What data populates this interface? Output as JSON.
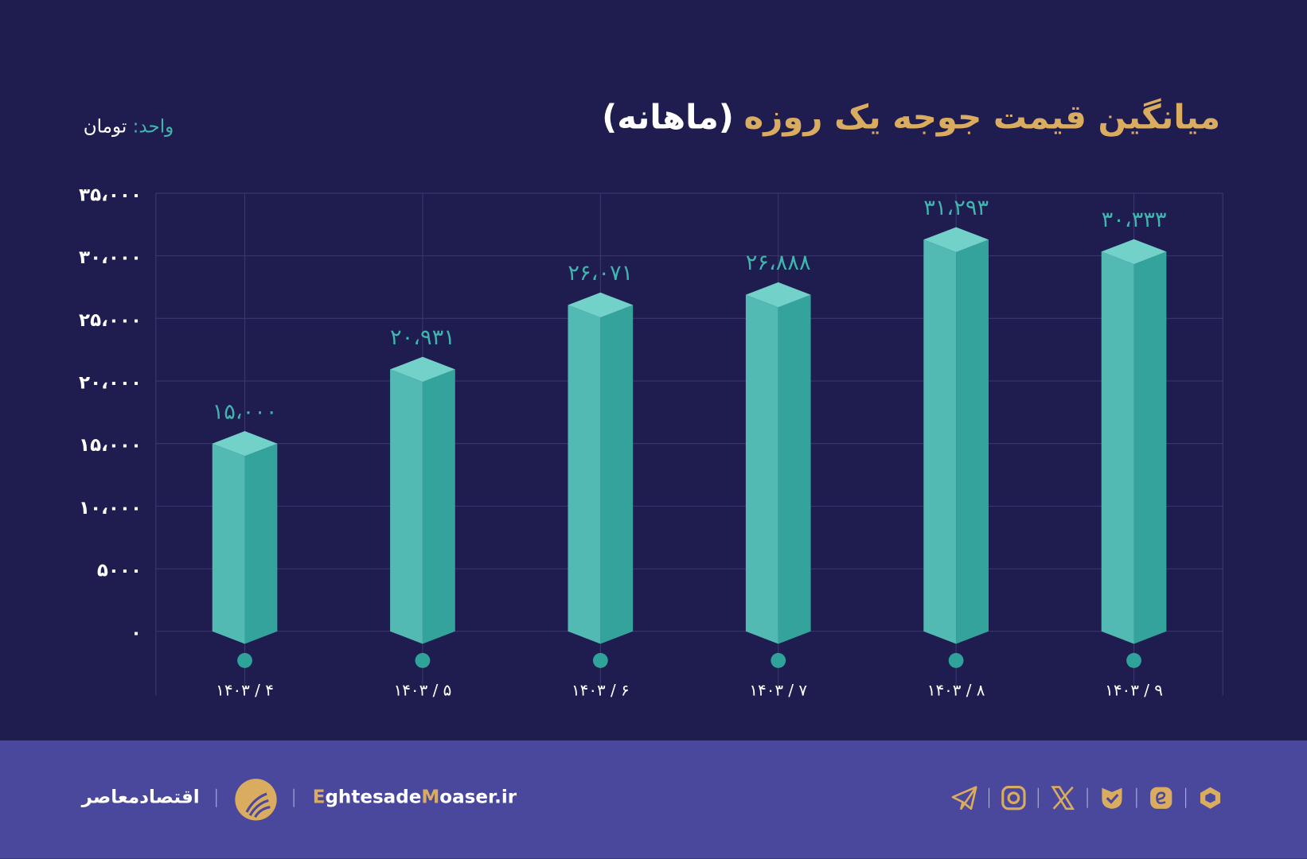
{
  "header": {
    "title_main": "میانگین قیمت جوجه یک روزه",
    "title_sub": "(ماهانه)",
    "unit_key": "واحد:",
    "unit_value": "تومان"
  },
  "chart_data": {
    "type": "bar",
    "title": "میانگین قیمت جوجه یک روزه (ماهانه)",
    "ylabel": "واحد: تومان",
    "categories": [
      "۱۴۰۳ / ۴",
      "۱۴۰۳ / ۵",
      "۱۴۰۳ / ۶",
      "۱۴۰۳ / ۷",
      "۱۴۰۳ / ۸",
      "۱۴۰۳ / ۹"
    ],
    "values": [
      15000,
      20931,
      26071,
      26888,
      31293,
      30333
    ],
    "value_labels": [
      "۱۵،۰۰۰",
      "۲۰،۹۳۱",
      "۲۶،۰۷۱",
      "۲۶،۸۸۸",
      "۳۱،۲۹۳",
      "۳۰،۳۳۳"
    ],
    "yticks": [
      0,
      5000,
      10000,
      15000,
      20000,
      25000,
      30000,
      35000
    ],
    "ytick_labels": [
      "۰",
      "۵۰۰۰",
      "۱۰،۰۰۰",
      "۱۵،۰۰۰",
      "۲۰،۰۰۰",
      "۲۵،۰۰۰",
      "۳۰،۰۰۰",
      "۳۵،۰۰۰"
    ],
    "ylim": [
      0,
      35000
    ],
    "grid": true,
    "colors": {
      "bar_left": "#53b9b3",
      "bar_right": "#34a39c",
      "bar_top": "#72d1c9",
      "label": "#3fb6ad",
      "dot": "#2fa39a",
      "grid": "#3a3870"
    }
  },
  "footer": {
    "brand_fa": "اقتصادمعاصر",
    "site_parts": [
      "E",
      "ghtesade",
      "M",
      "oaser.ir"
    ],
    "icons": [
      "telegram-icon",
      "instagram-icon",
      "x-icon",
      "bale-icon",
      "eitaa-icon",
      "rubika-icon"
    ],
    "accent": "#d9ac5f"
  }
}
